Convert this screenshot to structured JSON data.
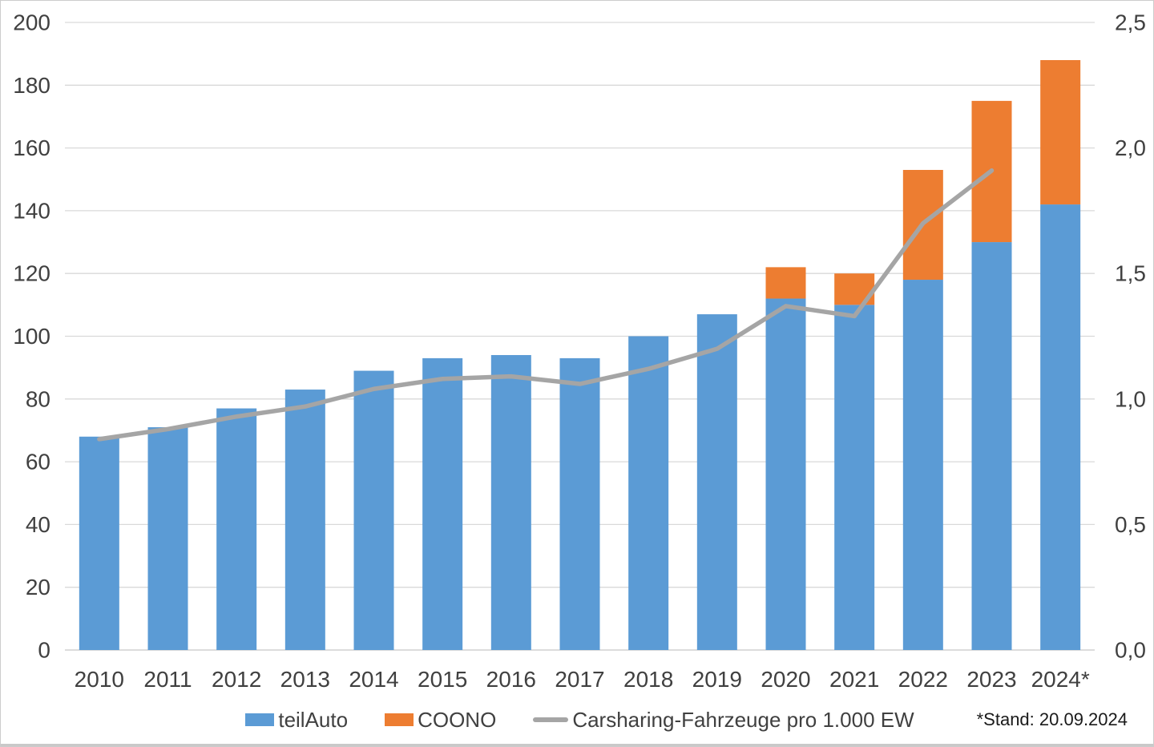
{
  "chart_data": {
    "type": "bar+line",
    "title": "",
    "categories": [
      "2010",
      "2011",
      "2012",
      "2013",
      "2014",
      "2015",
      "2016",
      "2017",
      "2018",
      "2019",
      "2020",
      "2021",
      "2022",
      "2023",
      "2024*"
    ],
    "series": [
      {
        "name": "teilAuto",
        "type": "bar",
        "stack": true,
        "color": "#5B9BD5",
        "axis": "left",
        "values": [
          68,
          71,
          77,
          83,
          89,
          93,
          94,
          93,
          100,
          107,
          112,
          110,
          118,
          130,
          142
        ]
      },
      {
        "name": "COONO",
        "type": "bar",
        "stack": true,
        "color": "#ED7D31",
        "axis": "left",
        "values": [
          0,
          0,
          0,
          0,
          0,
          0,
          0,
          0,
          0,
          0,
          10,
          10,
          35,
          45,
          46
        ]
      },
      {
        "name": "Carsharing-Fahrzeuge pro 1.000 EW",
        "type": "line",
        "color": "#A5A5A5",
        "axis": "right",
        "values": [
          0.84,
          0.88,
          0.93,
          0.97,
          1.04,
          1.08,
          1.09,
          1.06,
          1.12,
          1.2,
          1.37,
          1.33,
          1.7,
          1.91,
          null
        ]
      }
    ],
    "left_axis": {
      "min": 0,
      "max": 200,
      "step": 20,
      "labels": [
        "0",
        "20",
        "40",
        "60",
        "80",
        "100",
        "120",
        "140",
        "160",
        "180",
        "200"
      ]
    },
    "right_axis": {
      "min": 0,
      "max": 2.5,
      "step": 0.5,
      "labels": [
        "0,0",
        "0,5",
        "1,0",
        "1,5",
        "2,0",
        "2,5"
      ]
    },
    "grid": true,
    "legend_position": "bottom",
    "colors": {
      "gridline": "#D9D9D9",
      "baseline": "#C8C8C8",
      "axis_text": "#404040"
    }
  },
  "footnote": "*Stand: 20.09.2024"
}
